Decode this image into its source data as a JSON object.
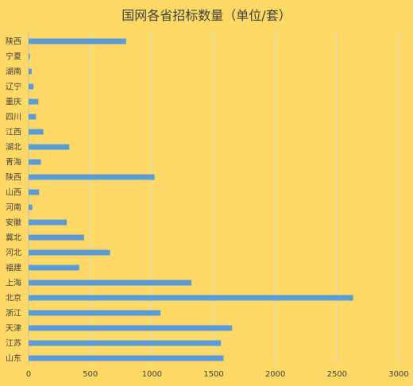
{
  "chart_data": {
    "type": "bar",
    "orientation": "horizontal",
    "title": "国网各省招标数量（单位/套）",
    "categories": [
      "陕西",
      "宁夏",
      "湖南",
      "辽宁",
      "重庆",
      "四川",
      "江西",
      "湖北",
      "青海",
      "陕西",
      "山西",
      "河南",
      "安徽",
      "冀北",
      "河北",
      "福建",
      "上海",
      "北京",
      "浙江",
      "天津",
      "江苏",
      "山东"
    ],
    "values": [
      790,
      10,
      25,
      40,
      80,
      60,
      120,
      330,
      100,
      1020,
      85,
      30,
      310,
      450,
      660,
      410,
      1320,
      2630,
      1070,
      1650,
      1560,
      1580
    ],
    "xlim": [
      0,
      3000
    ],
    "xticks": [
      0,
      500,
      1000,
      1500,
      2000,
      2500,
      3000
    ],
    "grid": true,
    "bar_color": "#5B9BD5",
    "grid_color": "#D9D9D9",
    "background": "#FFD966"
  }
}
